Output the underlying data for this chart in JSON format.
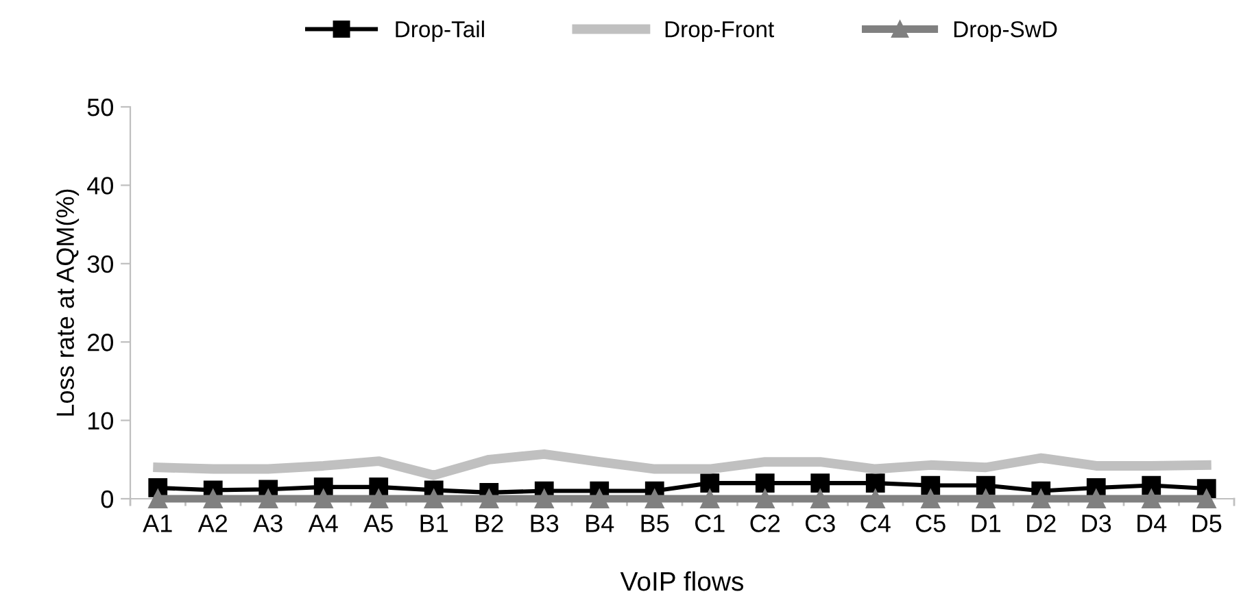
{
  "chart_data": {
    "type": "line",
    "xlabel": "VoIP flows",
    "ylabel": "Loss rate at AQM(%)",
    "categories": [
      "A1",
      "A2",
      "A3",
      "A4",
      "A5",
      "B1",
      "B2",
      "B3",
      "B4",
      "B5",
      "C1",
      "C2",
      "C3",
      "C4",
      "C5",
      "D1",
      "D2",
      "D3",
      "D4",
      "D5"
    ],
    "series": [
      {
        "name": "Drop-Tail",
        "color": "#000000",
        "marker": "square",
        "values": [
          1.4,
          1.1,
          1.2,
          1.5,
          1.5,
          1.1,
          0.8,
          1.0,
          1.0,
          1.0,
          2.0,
          2.0,
          2.0,
          2.0,
          1.7,
          1.7,
          1.0,
          1.4,
          1.7,
          1.3
        ]
      },
      {
        "name": "Drop-Front",
        "color": "#c0c0c0",
        "marker": "none",
        "values": [
          4.0,
          3.8,
          3.8,
          4.2,
          4.8,
          3.0,
          5.0,
          5.7,
          4.7,
          3.8,
          3.8,
          4.7,
          4.7,
          3.8,
          4.3,
          4.0,
          5.2,
          4.2,
          4.2,
          4.3
        ]
      },
      {
        "name": "Drop-SwD",
        "color": "#808080",
        "marker": "triangle",
        "values": [
          0,
          0,
          0,
          0,
          0,
          0,
          0,
          0,
          0,
          0,
          0,
          0,
          0,
          0,
          0,
          0,
          0,
          0,
          0,
          0
        ]
      }
    ],
    "ylim": [
      0,
      50
    ],
    "yticks": [
      0,
      10,
      20,
      30,
      40,
      50
    ],
    "grid": false,
    "legend": "top"
  }
}
